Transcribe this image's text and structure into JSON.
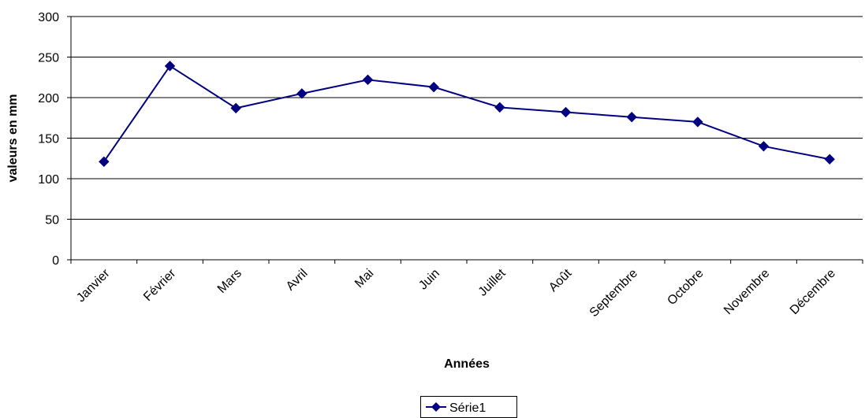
{
  "chart_data": {
    "type": "line",
    "title": "",
    "xlabel": "Années",
    "ylabel": "valeurs en mm",
    "categories": [
      "Janvier",
      "Février",
      "Mars",
      "Avril",
      "Mai",
      "Juin",
      "Juillet",
      "Août",
      "Septembre",
      "Octobre",
      "Novembre",
      "Décembre"
    ],
    "series": [
      {
        "name": "Série1",
        "values": [
          121,
          239,
          187,
          205,
          222,
          213,
          188,
          182,
          176,
          170,
          140,
          124
        ]
      }
    ],
    "ylim": [
      0,
      300
    ],
    "yticks": [
      "0",
      "50",
      "100",
      "150",
      "200",
      "250",
      "300"
    ],
    "grid": true,
    "legend_position": "bottom",
    "line_color": "#000080",
    "marker": "diamond"
  }
}
